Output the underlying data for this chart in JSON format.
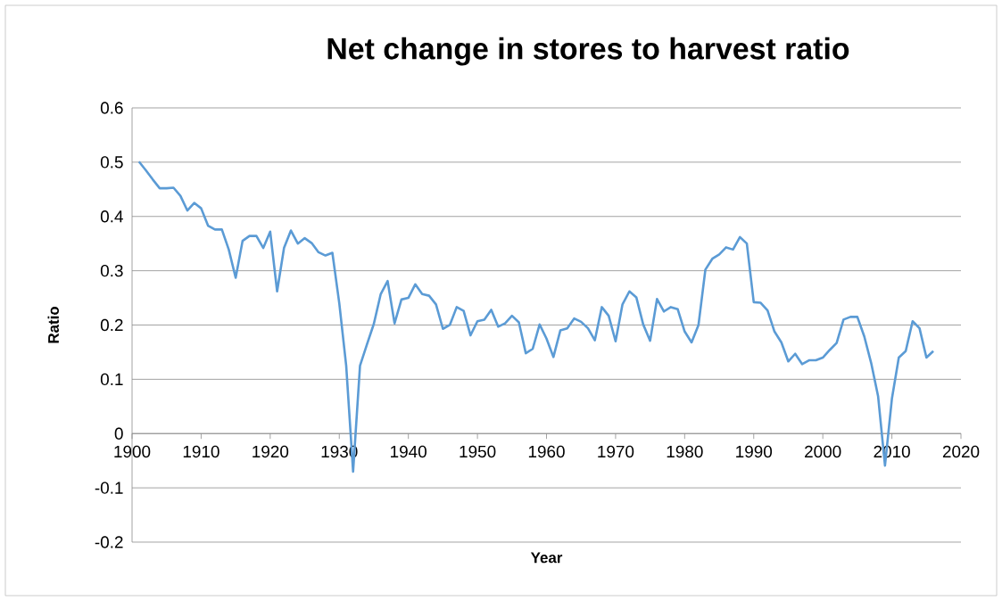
{
  "chart_data": {
    "type": "line",
    "title": "Net change in stores to harvest ratio",
    "xlabel": "Year",
    "ylabel": "Ratio",
    "x": [
      1901,
      1902,
      1903,
      1904,
      1905,
      1906,
      1907,
      1908,
      1909,
      1910,
      1911,
      1912,
      1913,
      1914,
      1915,
      1916,
      1917,
      1918,
      1919,
      1920,
      1921,
      1922,
      1923,
      1924,
      1925,
      1926,
      1927,
      1928,
      1929,
      1930,
      1931,
      1932,
      1933,
      1934,
      1935,
      1936,
      1937,
      1938,
      1939,
      1940,
      1941,
      1942,
      1943,
      1944,
      1945,
      1946,
      1947,
      1948,
      1949,
      1950,
      1951,
      1952,
      1953,
      1954,
      1955,
      1956,
      1957,
      1958,
      1959,
      1960,
      1961,
      1962,
      1963,
      1964,
      1965,
      1966,
      1967,
      1968,
      1969,
      1970,
      1971,
      1972,
      1973,
      1974,
      1975,
      1976,
      1977,
      1978,
      1979,
      1980,
      1981,
      1982,
      1983,
      1984,
      1985,
      1986,
      1987,
      1988,
      1989,
      1990,
      1991,
      1992,
      1993,
      1994,
      1995,
      1996,
      1997,
      1998,
      1999,
      2000,
      2001,
      2002,
      2003,
      2004,
      2005,
      2006,
      2007,
      2008,
      2009,
      2010,
      2011,
      2012,
      2013,
      2014,
      2015,
      2016
    ],
    "series": [
      {
        "color": "#5b9bd5",
        "values": [
          0.501,
          0.485,
          0.468,
          0.452,
          0.452,
          0.453,
          0.438,
          0.411,
          0.425,
          0.415,
          0.383,
          0.376,
          0.376,
          0.339,
          0.287,
          0.355,
          0.364,
          0.364,
          0.342,
          0.372,
          0.262,
          0.342,
          0.374,
          0.35,
          0.36,
          0.351,
          0.334,
          0.328,
          0.333,
          0.24,
          0.125,
          -0.07,
          0.125,
          0.164,
          0.202,
          0.257,
          0.281,
          0.203,
          0.247,
          0.25,
          0.275,
          0.257,
          0.254,
          0.238,
          0.193,
          0.2,
          0.233,
          0.226,
          0.181,
          0.207,
          0.21,
          0.228,
          0.197,
          0.203,
          0.217,
          0.205,
          0.148,
          0.156,
          0.201,
          0.175,
          0.141,
          0.19,
          0.194,
          0.212,
          0.206,
          0.194,
          0.172,
          0.233,
          0.217,
          0.17,
          0.238,
          0.262,
          0.251,
          0.201,
          0.171,
          0.248,
          0.225,
          0.233,
          0.229,
          0.188,
          0.168,
          0.2,
          0.302,
          0.322,
          0.33,
          0.343,
          0.339,
          0.362,
          0.35,
          0.242,
          0.241,
          0.227,
          0.188,
          0.168,
          0.133,
          0.147,
          0.128,
          0.135,
          0.135,
          0.14,
          0.154,
          0.167,
          0.21,
          0.215,
          0.215,
          0.179,
          0.13,
          0.069,
          -0.059,
          0.064,
          0.14,
          0.152,
          0.207,
          0.194,
          0.14,
          0.152
        ]
      }
    ],
    "xlim": [
      1900,
      2020
    ],
    "xticks": [
      1900,
      1910,
      1920,
      1930,
      1940,
      1950,
      1960,
      1970,
      1980,
      1990,
      2000,
      2010,
      2020
    ],
    "ylim": [
      -0.2,
      0.6
    ],
    "yticks": [
      -0.2,
      -0.1,
      0,
      0.1,
      0.2,
      0.3,
      0.4,
      0.5,
      0.6
    ],
    "grid": "y"
  }
}
